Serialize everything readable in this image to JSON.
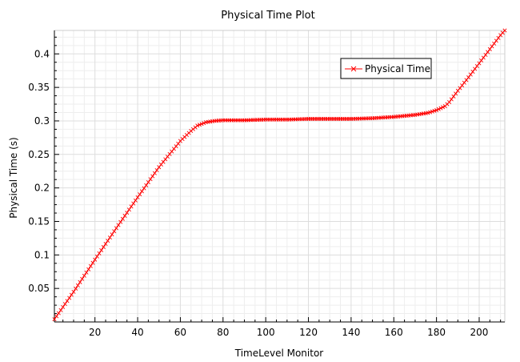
{
  "chart_data": {
    "type": "line",
    "title": "Physical Time Plot",
    "xlabel": "TimeLevel Monitor",
    "ylabel": "Physical Time (s)",
    "xlim": [
      1,
      212
    ],
    "ylim": [
      0,
      0.435
    ],
    "grid": true,
    "legend_placement": "top-right",
    "x_ticks": [
      20,
      40,
      60,
      80,
      100,
      120,
      140,
      160,
      180,
      200
    ],
    "y_ticks": [
      0.05,
      0.1,
      0.15,
      0.2,
      0.25,
      0.3,
      0.35,
      0.4
    ],
    "x_tick_labels": [
      "20",
      "40",
      "60",
      "80",
      "100",
      "120",
      "140",
      "160",
      "180",
      "200"
    ],
    "y_tick_labels": [
      "0.05",
      "0.1",
      "0.15",
      "0.2",
      "0.25",
      "0.3",
      "0.35",
      "0.4"
    ],
    "series": [
      {
        "name": "Physical Time",
        "color": "#ff0000",
        "marker": "x",
        "points": [
          [
            1,
            0.004
          ],
          [
            10,
            0.045
          ],
          [
            20,
            0.093
          ],
          [
            30,
            0.14
          ],
          [
            40,
            0.186
          ],
          [
            50,
            0.231
          ],
          [
            60,
            0.27
          ],
          [
            65,
            0.285
          ],
          [
            68,
            0.293
          ],
          [
            72,
            0.298
          ],
          [
            76,
            0.3
          ],
          [
            80,
            0.301
          ],
          [
            90,
            0.301
          ],
          [
            100,
            0.302
          ],
          [
            110,
            0.302
          ],
          [
            120,
            0.303
          ],
          [
            130,
            0.303
          ],
          [
            140,
            0.303
          ],
          [
            150,
            0.304
          ],
          [
            160,
            0.306
          ],
          [
            170,
            0.309
          ],
          [
            176,
            0.312
          ],
          [
            180,
            0.316
          ],
          [
            184,
            0.322
          ],
          [
            186,
            0.328
          ],
          [
            190,
            0.345
          ],
          [
            195,
            0.365
          ],
          [
            200,
            0.386
          ],
          [
            205,
            0.407
          ],
          [
            210,
            0.428
          ],
          [
            212,
            0.435
          ]
        ]
      }
    ]
  }
}
